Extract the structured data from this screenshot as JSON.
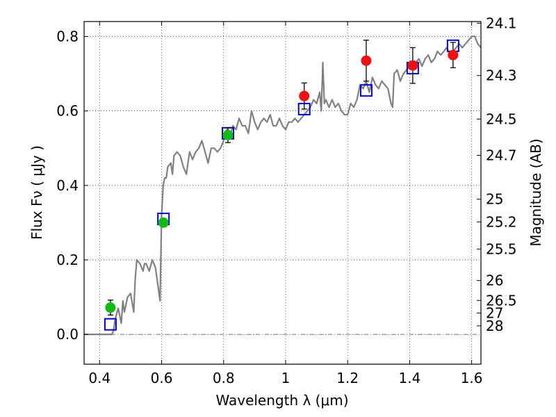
{
  "chart_data": {
    "type": "scatter",
    "title": "",
    "xlabel": "Wavelength  λ (μm)",
    "ylabel": "Flux  Fν  ( μJy )",
    "y2label": "Magnitude (AB)",
    "xlim": [
      0.35,
      1.63
    ],
    "ylim": [
      -0.08,
      0.84
    ],
    "grid": true,
    "x_ticks": [
      0.4,
      0.6,
      0.8,
      1.0,
      1.2,
      1.4,
      1.6
    ],
    "x_tick_labels": [
      "0.4",
      "0.6",
      "0.8",
      "1",
      "1.2",
      "1.4",
      "1.6"
    ],
    "y_ticks": [
      0.0,
      0.2,
      0.4,
      0.6,
      0.8
    ],
    "y_tick_labels": [
      "0.0",
      "0.2",
      "0.4",
      "0.6",
      "0.8"
    ],
    "y2_ticks": [
      {
        "label": "24.1",
        "flux": 0.8356
      },
      {
        "label": "24.3",
        "flux": 0.695
      },
      {
        "label": "24.5",
        "flux": 0.5781
      },
      {
        "label": "24.7",
        "flux": 0.4808
      },
      {
        "label": "25",
        "flux": 0.3631
      },
      {
        "label": "25.2",
        "flux": 0.302
      },
      {
        "label": "25.5",
        "flux": 0.2291
      },
      {
        "label": "26",
        "flux": 0.1445
      },
      {
        "label": "26.5",
        "flux": 0.0912
      },
      {
        "label": "27",
        "flux": 0.0575
      },
      {
        "label": "28",
        "flux": 0.0229
      }
    ],
    "series": [
      {
        "kind": "model-spectrum",
        "color": "#808080",
        "x": [
          0.35,
          0.39,
          0.42,
          0.44,
          0.445,
          0.45,
          0.46,
          0.47,
          0.475,
          0.48,
          0.49,
          0.5,
          0.51,
          0.515,
          0.52,
          0.53,
          0.54,
          0.545,
          0.55,
          0.56,
          0.57,
          0.58,
          0.59,
          0.595,
          0.6,
          0.605,
          0.61,
          0.615,
          0.62,
          0.63,
          0.635,
          0.64,
          0.65,
          0.66,
          0.67,
          0.68,
          0.69,
          0.7,
          0.71,
          0.72,
          0.73,
          0.74,
          0.75,
          0.76,
          0.77,
          0.78,
          0.79,
          0.8,
          0.81,
          0.82,
          0.83,
          0.84,
          0.85,
          0.86,
          0.87,
          0.88,
          0.89,
          0.9,
          0.91,
          0.92,
          0.93,
          0.94,
          0.95,
          0.96,
          0.97,
          0.98,
          0.99,
          1.0,
          1.01,
          1.02,
          1.03,
          1.04,
          1.05,
          1.06,
          1.07,
          1.08,
          1.09,
          1.1,
          1.11,
          1.115,
          1.12,
          1.125,
          1.13,
          1.14,
          1.15,
          1.16,
          1.17,
          1.18,
          1.19,
          1.2,
          1.21,
          1.22,
          1.23,
          1.24,
          1.25,
          1.26,
          1.27,
          1.28,
          1.29,
          1.3,
          1.31,
          1.32,
          1.33,
          1.34,
          1.345,
          1.35,
          1.36,
          1.37,
          1.38,
          1.39,
          1.4,
          1.41,
          1.42,
          1.43,
          1.44,
          1.45,
          1.46,
          1.47,
          1.48,
          1.49,
          1.5,
          1.51,
          1.52,
          1.53,
          1.54,
          1.55,
          1.56,
          1.57,
          1.58,
          1.59,
          1.6,
          1.61,
          1.62,
          1.63
        ],
        "y": [
          0.0,
          0.0,
          0.0,
          0.0,
          0.01,
          0.04,
          0.07,
          0.03,
          0.09,
          0.06,
          0.1,
          0.11,
          0.06,
          0.15,
          0.2,
          0.19,
          0.17,
          0.19,
          0.19,
          0.17,
          0.2,
          0.18,
          0.12,
          0.09,
          0.32,
          0.4,
          0.42,
          0.42,
          0.45,
          0.46,
          0.43,
          0.48,
          0.49,
          0.48,
          0.45,
          0.43,
          0.49,
          0.47,
          0.49,
          0.5,
          0.52,
          0.49,
          0.46,
          0.5,
          0.5,
          0.49,
          0.5,
          0.52,
          0.55,
          0.53,
          0.56,
          0.55,
          0.58,
          0.56,
          0.56,
          0.54,
          0.6,
          0.57,
          0.55,
          0.57,
          0.58,
          0.57,
          0.59,
          0.56,
          0.56,
          0.58,
          0.56,
          0.55,
          0.57,
          0.57,
          0.58,
          0.57,
          0.58,
          0.59,
          0.6,
          0.61,
          0.63,
          0.62,
          0.65,
          0.6,
          0.73,
          0.62,
          0.63,
          0.61,
          0.63,
          0.61,
          0.62,
          0.6,
          0.59,
          0.59,
          0.62,
          0.61,
          0.63,
          0.67,
          0.66,
          0.68,
          0.65,
          0.69,
          0.67,
          0.66,
          0.68,
          0.67,
          0.66,
          0.62,
          0.61,
          0.7,
          0.71,
          0.68,
          0.7,
          0.71,
          0.72,
          0.72,
          0.73,
          0.74,
          0.72,
          0.74,
          0.75,
          0.73,
          0.74,
          0.76,
          0.75,
          0.76,
          0.77,
          0.75,
          0.76,
          0.77,
          0.78,
          0.77,
          0.78,
          0.79,
          0.8,
          0.8,
          0.78,
          0.77
        ]
      },
      {
        "kind": "model-photometry",
        "color": "#0000cc",
        "marker": "square",
        "x": [
          0.435,
          0.606,
          0.814,
          1.06,
          1.26,
          1.41,
          1.54
        ],
        "y": [
          0.027,
          0.31,
          0.54,
          0.605,
          0.655,
          0.715,
          0.775
        ]
      },
      {
        "kind": "observed-green",
        "color": "#11bb11",
        "marker": "circle",
        "x": [
          0.435,
          0.606,
          0.814
        ],
        "y": [
          0.072,
          0.3,
          0.535
        ],
        "yerr": [
          0.02,
          0.0,
          0.02
        ]
      },
      {
        "kind": "observed-red",
        "color": "#ee1111",
        "marker": "circle",
        "x": [
          1.06,
          1.26,
          1.41,
          1.54
        ],
        "y": [
          0.64,
          0.735,
          0.722,
          0.75
        ],
        "yerr": [
          0.035,
          0.055,
          0.048,
          0.034
        ]
      }
    ]
  }
}
